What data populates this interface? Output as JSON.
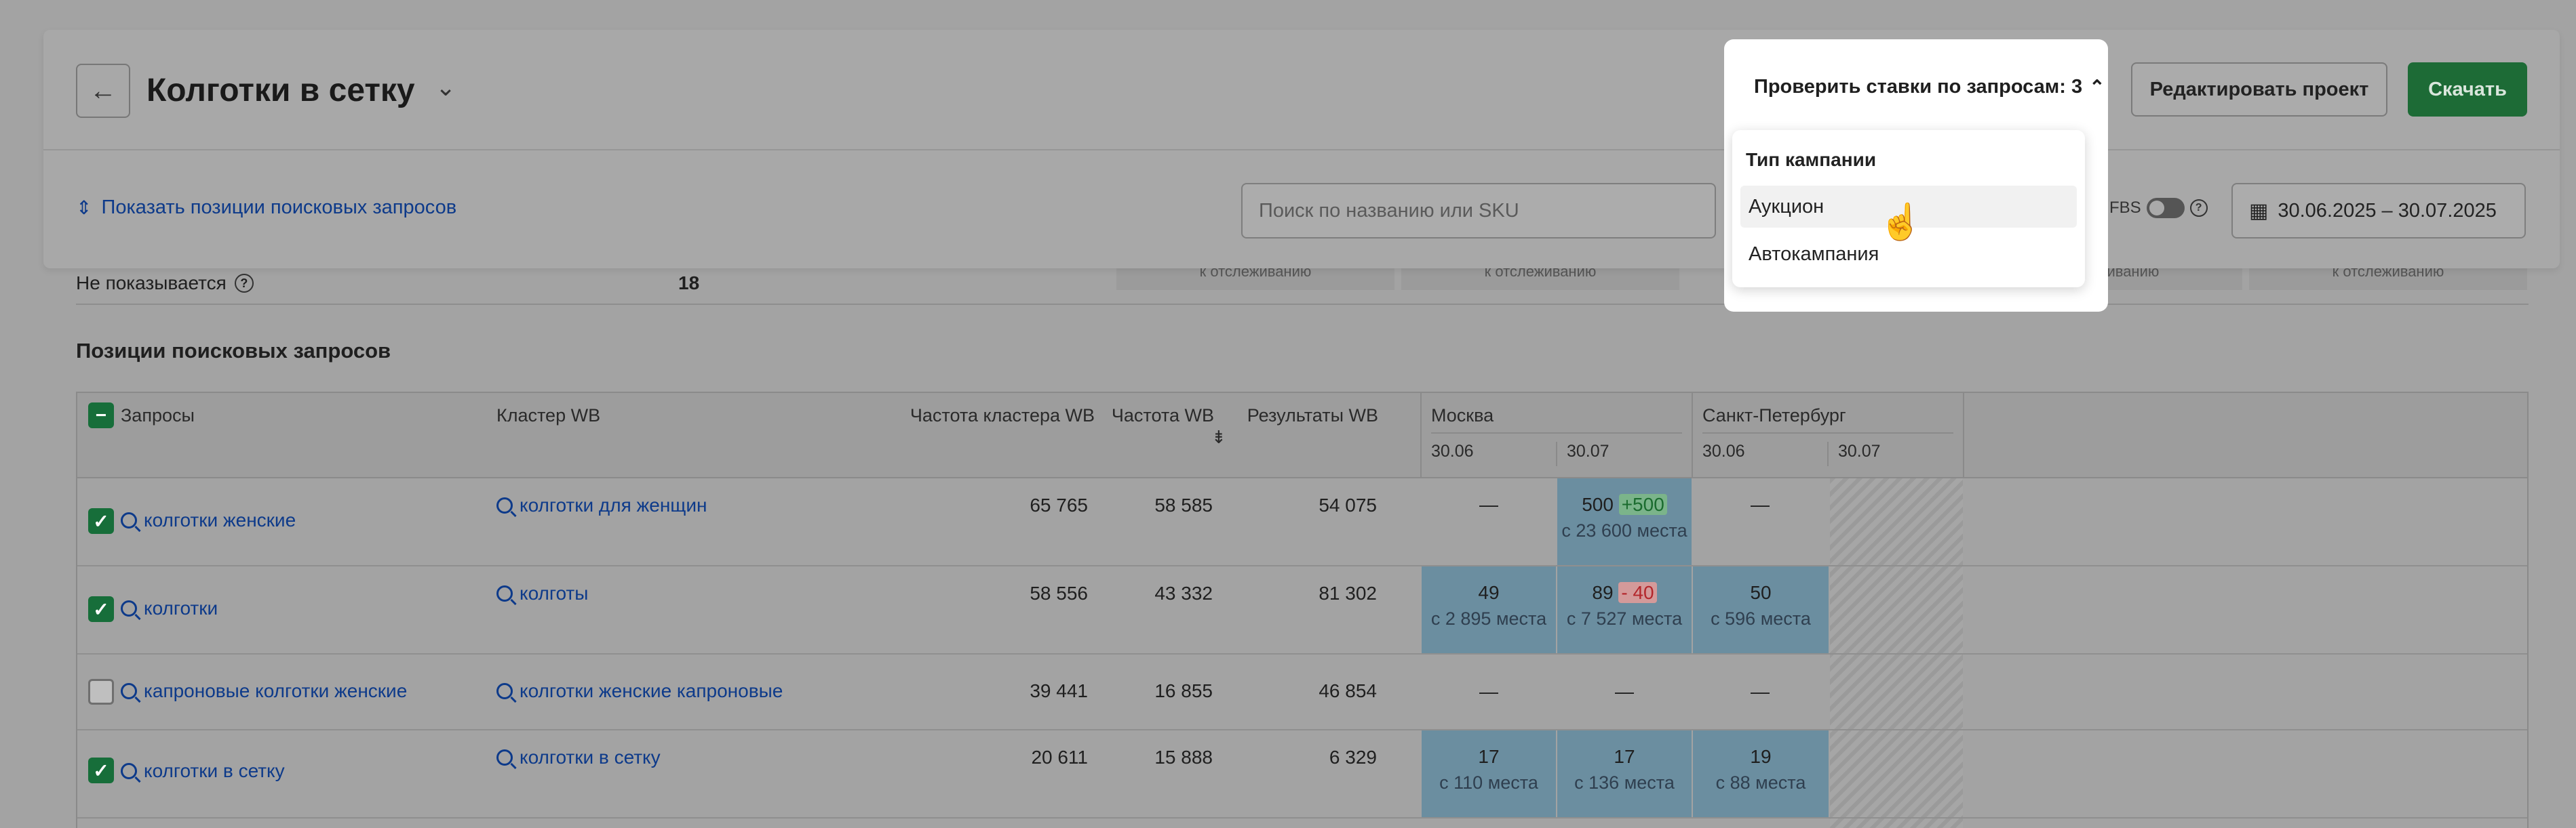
{
  "header": {
    "title": "Колготки в сетку",
    "check_bids_label": "Проверить ставки по запросам: 3",
    "edit_label": "Редактировать проект",
    "download_label": "Скачать",
    "show_positions_label": "Показать позиции поисковых запросов",
    "search_placeholder": "Поиск по названию или SKU",
    "fbs_label": "FBS",
    "date_range": "30.06.2025 – 30.07.2025"
  },
  "dropdown": {
    "heading": "Тип кампании",
    "options": [
      "Аукцион",
      "Автокампания"
    ]
  },
  "summary": {
    "not_shown_label": "Не показывается",
    "not_shown_value": "18",
    "tracking_stub": "к отслеживанию"
  },
  "section_title": "Позиции поисковых запросов",
  "table": {
    "columns": {
      "queries": "Запросы",
      "cluster": "Кластер WB",
      "cluster_freq": "Частота кластера WB",
      "freq": "Частота WB",
      "results": "Результаты WB"
    },
    "regions": [
      "Москва",
      "Санкт-Петербург"
    ],
    "dates": [
      "30.06",
      "30.07"
    ],
    "rows": [
      {
        "query": "колготки женские",
        "cluster": "колготки для женщин",
        "cluster_freq": "65 765",
        "freq": "58 585",
        "results": "54 075",
        "msk1": "—",
        "msk2": "500",
        "msk2_delta": "+500",
        "msk2_sub": "с 23 600 места",
        "spb1": "—"
      },
      {
        "query": "колготки",
        "cluster": "колготы",
        "cluster_freq": "58 556",
        "freq": "43 332",
        "results": "81 302",
        "msk1": "49",
        "msk1_sub": "с 2 895 места",
        "msk2": "89",
        "msk2_delta": "- 40",
        "msk2_sub": "с 7 527 места",
        "spb1": "50",
        "spb1_sub": "с 596 места"
      },
      {
        "query": "капроновые колготки женские",
        "cluster": "колготки женские капроновые",
        "cluster_freq": "39 441",
        "freq": "16 855",
        "results": "46 854",
        "msk1": "—",
        "msk2": "—",
        "spb1": "—"
      },
      {
        "query": "колготки в сетку",
        "cluster": "колготки в сетку",
        "cluster_freq": "20 611",
        "freq": "15 888",
        "results": "6 329",
        "msk1": "17",
        "msk1_sub": "с 110 места",
        "msk2": "17",
        "msk2_sub": "с 136 места",
        "spb1": "19",
        "spb1_sub": "с 88 места"
      }
    ]
  }
}
